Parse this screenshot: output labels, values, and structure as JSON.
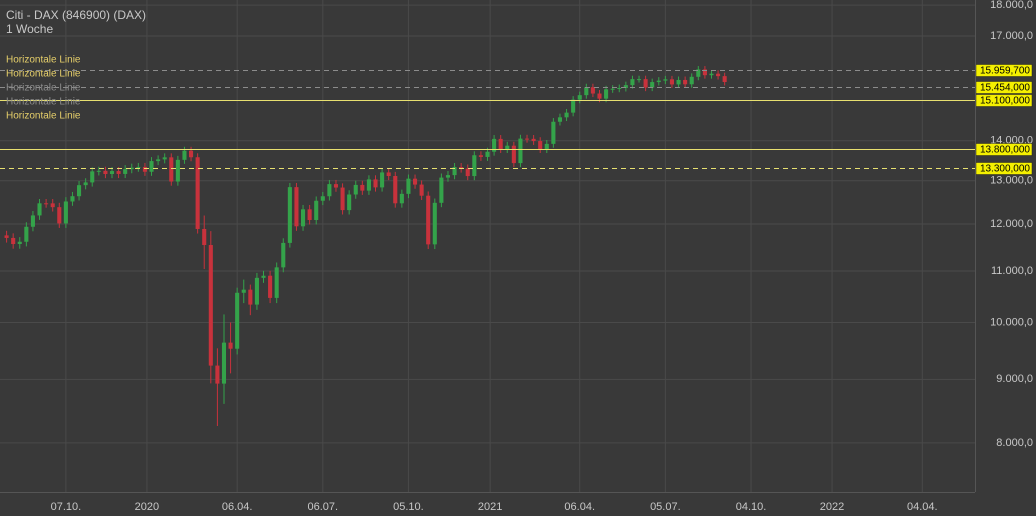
{
  "chart_data": {
    "type": "candlestick",
    "title": "Citi - DAX (846900) (DAX)",
    "subtitle": "1 Woche",
    "log_scale": true,
    "grid": true,
    "up_color": "#34a34a",
    "down_color": "#c8323c",
    "xlim": [
      -1,
      147
    ],
    "ylim": [
      7305,
      18170
    ],
    "xticks": [
      {
        "value": 9,
        "label": "07.10."
      },
      {
        "value": 21.3,
        "label": "2020"
      },
      {
        "value": 35,
        "label": "06.04."
      },
      {
        "value": 48,
        "label": "06.07."
      },
      {
        "value": 61,
        "label": "05.10."
      },
      {
        "value": 73.4,
        "label": "2021"
      },
      {
        "value": 87,
        "label": "06.04."
      },
      {
        "value": 100,
        "label": "05.07."
      },
      {
        "value": 113,
        "label": "04.10."
      },
      {
        "value": 125.3,
        "label": "2022"
      },
      {
        "value": 139,
        "label": "04.04."
      }
    ],
    "yticks": [
      {
        "value": 8000,
        "label": "8.000,0"
      },
      {
        "value": 9000,
        "label": "9.000,0"
      },
      {
        "value": 10000,
        "label": "10.000,0"
      },
      {
        "value": 11000,
        "label": "11.000,0"
      },
      {
        "value": 12000,
        "label": "12.000,0"
      },
      {
        "value": 13000,
        "label": "13.000,0"
      },
      {
        "value": 14000,
        "label": "14.000,0"
      },
      {
        "value": 17000,
        "label": "17.000,0"
      },
      {
        "value": 18000,
        "label": "18.000,0"
      }
    ],
    "legend": [
      {
        "name": "Horizontale Linie",
        "color": "#e6cf6a"
      },
      {
        "name": "Horizontale Linie",
        "color": "#e6cf6a"
      },
      {
        "name": "Horizontale Linie",
        "color": "#8c8c8c"
      },
      {
        "name": "Horizontale Linie",
        "color": "#8c8c8c"
      },
      {
        "name": "Horizontale Linie",
        "color": "#e6cf6a"
      }
    ],
    "hlines": [
      {
        "value": 15959.7,
        "label": "15.959,700",
        "color": "#8c8c8c",
        "dashed": true
      },
      {
        "value": 15454,
        "label": "15.454,000",
        "color": "#8c8c8c",
        "dashed": true
      },
      {
        "value": 15100,
        "label": "15.100,000",
        "color": "#e8e070",
        "dashed": false
      },
      {
        "value": 13800,
        "label": "13.800,000",
        "color": "#e8e070",
        "dashed": false
      },
      {
        "value": 13300,
        "label": "13.300,000",
        "color": "#e8e070",
        "dashed": true
      }
    ],
    "x": [
      0,
      1,
      2,
      3,
      4,
      5,
      6,
      7,
      8,
      9,
      10,
      11,
      12,
      13,
      14,
      15,
      16,
      17,
      18,
      19,
      20,
      21,
      22,
      23,
      24,
      25,
      26,
      27,
      28,
      29,
      30,
      31,
      32,
      33,
      34,
      35,
      36,
      37,
      38,
      39,
      40,
      41,
      42,
      43,
      44,
      45,
      46,
      47,
      48,
      49,
      50,
      51,
      52,
      53,
      54,
      55,
      56,
      57,
      58,
      59,
      60,
      61,
      62,
      63,
      64,
      65,
      66,
      67,
      68,
      69,
      70,
      71,
      72,
      73,
      74,
      75,
      76,
      77,
      78,
      79,
      80,
      81,
      82,
      83,
      84,
      85,
      86,
      87,
      88,
      89,
      90,
      91,
      92,
      93,
      94,
      95,
      96,
      97,
      98,
      99,
      100,
      101,
      102,
      103,
      104,
      105,
      106,
      107,
      108,
      109
    ],
    "open": [
      11750,
      11694,
      11563,
      11612,
      11939,
      12192,
      12469,
      12468,
      12380,
      12013,
      12511,
      12634,
      12895,
      12961,
      13229,
      13242,
      13164,
      13236,
      13166,
      13283,
      13319,
      13337,
      13219,
      13483,
      13526,
      13577,
      12982,
      13514,
      13745,
      13579,
      11890,
      11542,
      9232,
      8929,
      9633,
      9525,
      10565,
      10626,
      10336,
      10861,
      10904,
      10465,
      11074,
      11587,
      12848,
      11949,
      12331,
      12089,
      12528,
      12633,
      12920,
      12838,
      12313,
      12674,
      12901,
      12765,
      13033,
      12842,
      13203,
      13116,
      12469,
      12689,
      13051,
      12909,
      12646,
      11556,
      12480,
      13077,
      13137,
      13335,
      13298,
      13114,
      13630,
      13587,
      13719,
      14049,
      13787,
      13873,
      13433,
      14056,
      14050,
      13993,
      13786,
      13920,
      14502,
      14621,
      14749,
      15107,
      15234,
      15460,
      15280,
      15136,
      15400,
      15417,
      15437,
      15520,
      15693,
      15693,
      15448,
      15608,
      15650,
      15688,
      15540,
      15669,
      15544,
      15761,
      15977,
      15808,
      15852,
      15781
    ],
    "high": [
      11850,
      11794,
      11712,
      12039,
      12292,
      12569,
      12569,
      12568,
      12480,
      12611,
      12734,
      12995,
      13061,
      13329,
      13342,
      13342,
      13336,
      13336,
      13383,
      13419,
      13437,
      13437,
      13583,
      13626,
      13677,
      13677,
      13614,
      13845,
      13845,
      13679,
      12190,
      11842,
      9532,
      10150,
      10000,
      10665,
      10826,
      10726,
      10961,
      11004,
      11004,
      11174,
      11687,
      12948,
      12948,
      12431,
      12431,
      12628,
      12733,
      13020,
      13020,
      12938,
      12774,
      13001,
      13001,
      13133,
      13133,
      13303,
      13303,
      13216,
      12789,
      13151,
      13151,
      13009,
      12746,
      12580,
      13177,
      13237,
      13435,
      13435,
      13398,
      13730,
      13730,
      13819,
      14149,
      14149,
      13973,
      13973,
      14156,
      14156,
      14150,
      14093,
      14020,
      14602,
      14721,
      14849,
      15207,
      15334,
      15560,
      15560,
      15380,
      15500,
      15517,
      15537,
      15620,
      15793,
      15793,
      15793,
      15708,
      15750,
      15788,
      15788,
      15769,
      15769,
      15861,
      16077,
      16077,
      15952,
      15952,
      15881
    ],
    "low": [
      11594,
      11463,
      11463,
      11512,
      11839,
      12092,
      12368,
      12280,
      11913,
      11913,
      12411,
      12534,
      12795,
      12861,
      13129,
      13064,
      13064,
      13066,
      13066,
      13183,
      13219,
      13119,
      13119,
      13383,
      13426,
      12882,
      12882,
      13414,
      13479,
      11790,
      11040,
      8932,
      8255,
      8600,
      9100,
      9425,
      10365,
      10136,
      10236,
      10761,
      10365,
      10365,
      10974,
      11487,
      11849,
      11849,
      11989,
      11989,
      12428,
      12533,
      12738,
      12213,
      12213,
      12574,
      12665,
      12665,
      12742,
      12742,
      13016,
      12369,
      12369,
      12589,
      12809,
      12546,
      11456,
      11456,
      12380,
      12977,
      13037,
      13198,
      13014,
      13014,
      13487,
      13487,
      13619,
      13687,
      13687,
      13333,
      13333,
      13950,
      13893,
      13686,
      13686,
      13820,
      14402,
      14521,
      14649,
      15007,
      15134,
      15180,
      15036,
      15036,
      15300,
      15317,
      15337,
      15420,
      15593,
      15348,
      15348,
      15508,
      15550,
      15440,
      15440,
      15444,
      15444,
      15661,
      15708,
      15708,
      15681,
      15510
    ],
    "close": [
      11694,
      11563,
      11612,
      11939,
      12192,
      12469,
      12468,
      12380,
      12013,
      12511,
      12634,
      12895,
      12961,
      13229,
      13242,
      13164,
      13236,
      13166,
      13283,
      13319,
      13337,
      13219,
      13483,
      13526,
      13577,
      12982,
      13514,
      13745,
      13579,
      11890,
      11542,
      9232,
      8929,
      9633,
      9525,
      10565,
      10626,
      10336,
      10861,
      10904,
      10465,
      11074,
      11587,
      12848,
      11949,
      12331,
      12089,
      12528,
      12633,
      12920,
      12838,
      12313,
      12674,
      12901,
      12765,
      13033,
      12842,
      13203,
      13116,
      12469,
      12689,
      13051,
      12909,
      12646,
      11556,
      12480,
      13077,
      13137,
      13335,
      13298,
      13114,
      13630,
      13587,
      13719,
      14049,
      13787,
      13873,
      13433,
      14056,
      14050,
      13993,
      13786,
      13920,
      14502,
      14621,
      14749,
      15107,
      15234,
      15460,
      15280,
      15136,
      15400,
      15417,
      15437,
      15520,
      15693,
      15693,
      15448,
      15608,
      15650,
      15688,
      15540,
      15669,
      15544,
      15761,
      15977,
      15808,
      15852,
      15781,
      15610
    ]
  }
}
